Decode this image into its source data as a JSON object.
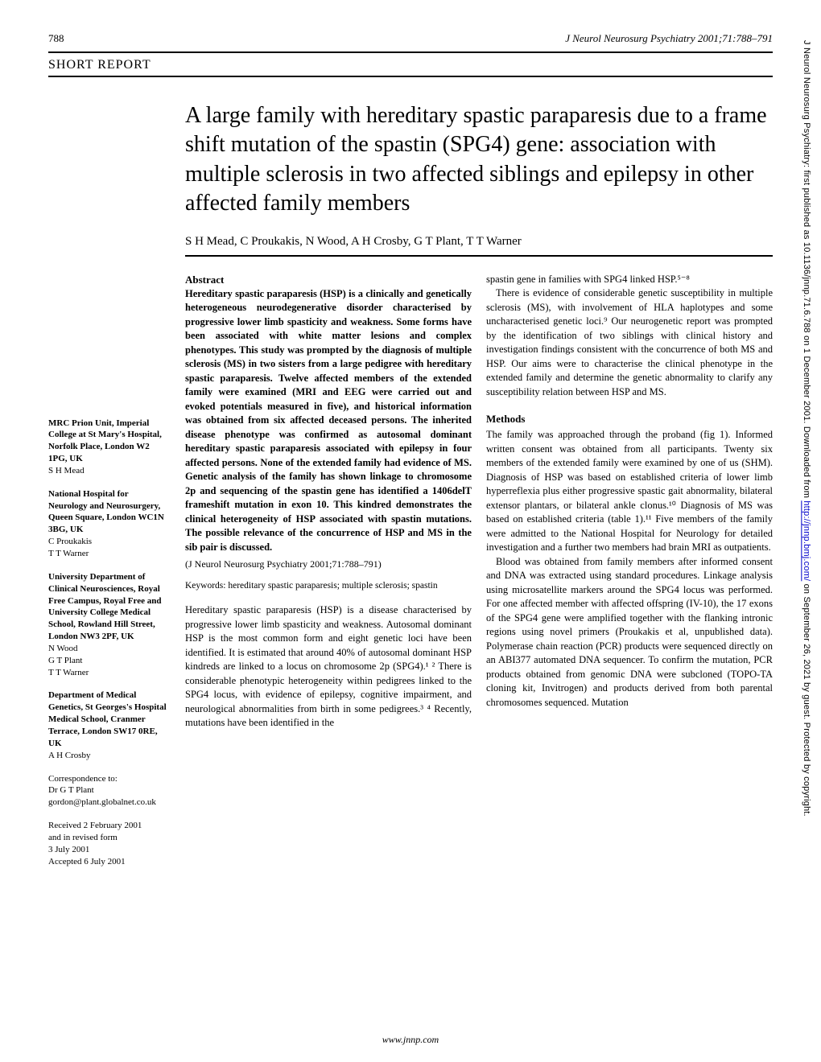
{
  "header": {
    "page_number": "788",
    "journal_ref": "J Neurol Neurosurg Psychiatry 2001;71:788–791"
  },
  "section_label": "SHORT REPORT",
  "title": "A large family with hereditary spastic paraparesis due to a frame shift mutation of the spastin (SPG4) gene: association with multiple sclerosis in two affected siblings and epilepsy in other affected family members",
  "authors": "S H Mead, C Proukakis, N Wood, A H Crosby, G T Plant, T T Warner",
  "sidebar": {
    "affils": [
      {
        "title": "MRC Prion Unit, Imperial College at St Mary's Hospital, Norfolk Place, London W2 1PG, UK",
        "names": "S H Mead"
      },
      {
        "title": "National Hospital for Neurology and Neurosurgery, Queen Square, London WC1N 3BG, UK",
        "names": "C Proukakis\nT T Warner"
      },
      {
        "title": "University Department of Clinical Neurosciences, Royal Free Campus, Royal Free and University College Medical School, Rowland Hill Street, London NW3 2PF, UK",
        "names": "N Wood\nG T Plant\nT T Warner"
      },
      {
        "title": "Department of Medical Genetics, St Georges's Hospital Medical School, Cranmer Terrace, London SW17 0RE, UK",
        "names": "A H Crosby"
      }
    ],
    "correspondence": "Correspondence to:\nDr G T Plant\ngordon@plant.globalnet.co.uk",
    "dates": "Received 2 February 2001\nand in revised form\n3 July 2001\nAccepted 6 July 2001"
  },
  "abstract": {
    "heading": "Abstract",
    "body": "Hereditary spastic paraparesis (HSP) is a clinically and genetically heterogeneous neurodegenerative disorder characterised by progressive lower limb spasticity and weakness. Some forms have been associated with white matter lesions and complex phenotypes. This study was prompted by the diagnosis of multiple sclerosis (MS) in two sisters from a large pedigree with hereditary spastic paraparesis. Twelve affected members of the extended family were examined (MRI and EEG were carried out and evoked potentials measured in five), and historical information was obtained from six affected deceased persons. The inherited disease phenotype was confirmed as autosomal dominant hereditary spastic paraparesis associated with epilepsy in four affected persons. None of the extended family had evidence of MS. Genetic analysis of the family has shown linkage to chromosome 2p and sequencing of the spastin gene has identified a 1406delT frameshift mutation in exon 10. This kindred demonstrates the clinical heterogeneity of HSP associated with spastin mutations. The possible relevance of the concurrence of HSP and MS in the sib pair is discussed.",
    "citation": "(J Neurol Neurosurg Psychiatry 2001;71:788–791)",
    "keywords": "Keywords: hereditary spastic paraparesis; multiple sclerosis; spastin"
  },
  "intro": "Hereditary spastic paraparesis (HSP) is a disease characterised by progressive lower limb spasticity and weakness. Autosomal dominant HSP is the most common form and eight genetic loci have been identified. It is estimated that around 40% of autosomal dominant HSP kindreds are linked to a locus on chromosome 2p (SPG4).¹ ² There is considerable phenotypic heterogeneity within pedigrees linked to the SPG4 locus, with evidence of epilepsy, cognitive impairment, and neurological abnormalities from birth in some pedigrees.³ ⁴ Recently, mutations have been identified in the",
  "col2_top": "spastin gene in families with SPG4 linked HSP.⁵⁻⁸",
  "col2_para2": "There is evidence of considerable genetic susceptibility in multiple sclerosis (MS), with involvement of HLA haplotypes and some uncharacterised genetic loci.⁹ Our neurogenetic report was prompted by the identification of two siblings with clinical history and investigation findings consistent with the concurrence of both MS and HSP. Our aims were to characterise the clinical phenotype in the extended family and determine the genetic abnormality to clarify any susceptibility relation between HSP and MS.",
  "methods": {
    "heading": "Methods",
    "para1": "The family was approached through the proband (fig 1). Informed written consent was obtained from all participants. Twenty six members of the extended family were examined by one of us (SHM). Diagnosis of HSP was based on established criteria of lower limb hyperreflexia plus either progressive spastic gait abnormality, bilateral extensor plantars, or bilateral ankle clonus.¹⁰ Diagnosis of MS was based on established criteria (table 1).¹¹ Five members of the family were admitted to the National Hospital for Neurology for detailed investigation and a further two members had brain MRI as outpatients.",
    "para2": "Blood was obtained from family members after informed consent and DNA was extracted using standard procedures. Linkage analysis using microsatellite markers around the SPG4 locus was performed. For one affected member with affected offspring (IV-10), the 17 exons of the SPG4 gene were amplified together with the flanking intronic regions using novel primers (Proukakis et al, unpublished data). Polymerase chain reaction (PCR) products were sequenced directly on an ABI377 automated DNA sequencer. To confirm the mutation, PCR products obtained from genomic DNA were subcloned (TOPO-TA cloning kit, Invitrogen) and products derived from both parental chromosomes sequenced. Mutation"
  },
  "footer": "www.jnnp.com",
  "margin_text": {
    "prefix": "J Neurol Neurosurg Psychiatry: first published as 10.1136/jnnp.71.6.788 on 1 December 2001. Downloaded from ",
    "link": "http://jnnp.bmj.com/",
    "suffix": " on September 26, 2021 by guest. Protected by copyright."
  }
}
